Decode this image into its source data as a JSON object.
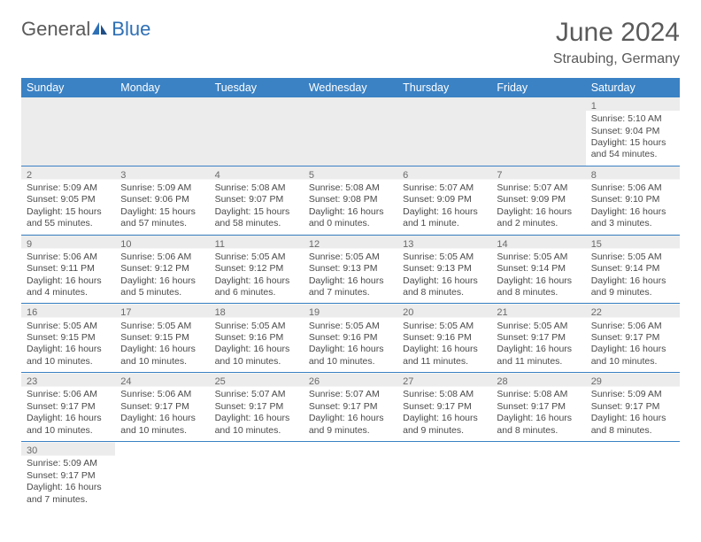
{
  "header": {
    "logo_general": "General",
    "logo_blue": "Blue",
    "title": "June 2024",
    "location": "Straubing, Germany"
  },
  "calendar": {
    "header_bg": "#3b82c4",
    "header_text_color": "#ffffff",
    "dayname_row_bg": "#ececec",
    "row_border_color": "#3b82c4",
    "text_color": "#4a4a4a",
    "daynames": [
      "Sunday",
      "Monday",
      "Tuesday",
      "Wednesday",
      "Thursday",
      "Friday",
      "Saturday"
    ],
    "weeks": [
      [
        null,
        null,
        null,
        null,
        null,
        null,
        {
          "n": "1",
          "sr": "Sunrise: 5:10 AM",
          "ss": "Sunset: 9:04 PM",
          "d1": "Daylight: 15 hours",
          "d2": "and 54 minutes."
        }
      ],
      [
        {
          "n": "2",
          "sr": "Sunrise: 5:09 AM",
          "ss": "Sunset: 9:05 PM",
          "d1": "Daylight: 15 hours",
          "d2": "and 55 minutes."
        },
        {
          "n": "3",
          "sr": "Sunrise: 5:09 AM",
          "ss": "Sunset: 9:06 PM",
          "d1": "Daylight: 15 hours",
          "d2": "and 57 minutes."
        },
        {
          "n": "4",
          "sr": "Sunrise: 5:08 AM",
          "ss": "Sunset: 9:07 PM",
          "d1": "Daylight: 15 hours",
          "d2": "and 58 minutes."
        },
        {
          "n": "5",
          "sr": "Sunrise: 5:08 AM",
          "ss": "Sunset: 9:08 PM",
          "d1": "Daylight: 16 hours",
          "d2": "and 0 minutes."
        },
        {
          "n": "6",
          "sr": "Sunrise: 5:07 AM",
          "ss": "Sunset: 9:09 PM",
          "d1": "Daylight: 16 hours",
          "d2": "and 1 minute."
        },
        {
          "n": "7",
          "sr": "Sunrise: 5:07 AM",
          "ss": "Sunset: 9:09 PM",
          "d1": "Daylight: 16 hours",
          "d2": "and 2 minutes."
        },
        {
          "n": "8",
          "sr": "Sunrise: 5:06 AM",
          "ss": "Sunset: 9:10 PM",
          "d1": "Daylight: 16 hours",
          "d2": "and 3 minutes."
        }
      ],
      [
        {
          "n": "9",
          "sr": "Sunrise: 5:06 AM",
          "ss": "Sunset: 9:11 PM",
          "d1": "Daylight: 16 hours",
          "d2": "and 4 minutes."
        },
        {
          "n": "10",
          "sr": "Sunrise: 5:06 AM",
          "ss": "Sunset: 9:12 PM",
          "d1": "Daylight: 16 hours",
          "d2": "and 5 minutes."
        },
        {
          "n": "11",
          "sr": "Sunrise: 5:05 AM",
          "ss": "Sunset: 9:12 PM",
          "d1": "Daylight: 16 hours",
          "d2": "and 6 minutes."
        },
        {
          "n": "12",
          "sr": "Sunrise: 5:05 AM",
          "ss": "Sunset: 9:13 PM",
          "d1": "Daylight: 16 hours",
          "d2": "and 7 minutes."
        },
        {
          "n": "13",
          "sr": "Sunrise: 5:05 AM",
          "ss": "Sunset: 9:13 PM",
          "d1": "Daylight: 16 hours",
          "d2": "and 8 minutes."
        },
        {
          "n": "14",
          "sr": "Sunrise: 5:05 AM",
          "ss": "Sunset: 9:14 PM",
          "d1": "Daylight: 16 hours",
          "d2": "and 8 minutes."
        },
        {
          "n": "15",
          "sr": "Sunrise: 5:05 AM",
          "ss": "Sunset: 9:14 PM",
          "d1": "Daylight: 16 hours",
          "d2": "and 9 minutes."
        }
      ],
      [
        {
          "n": "16",
          "sr": "Sunrise: 5:05 AM",
          "ss": "Sunset: 9:15 PM",
          "d1": "Daylight: 16 hours",
          "d2": "and 10 minutes."
        },
        {
          "n": "17",
          "sr": "Sunrise: 5:05 AM",
          "ss": "Sunset: 9:15 PM",
          "d1": "Daylight: 16 hours",
          "d2": "and 10 minutes."
        },
        {
          "n": "18",
          "sr": "Sunrise: 5:05 AM",
          "ss": "Sunset: 9:16 PM",
          "d1": "Daylight: 16 hours",
          "d2": "and 10 minutes."
        },
        {
          "n": "19",
          "sr": "Sunrise: 5:05 AM",
          "ss": "Sunset: 9:16 PM",
          "d1": "Daylight: 16 hours",
          "d2": "and 10 minutes."
        },
        {
          "n": "20",
          "sr": "Sunrise: 5:05 AM",
          "ss": "Sunset: 9:16 PM",
          "d1": "Daylight: 16 hours",
          "d2": "and 11 minutes."
        },
        {
          "n": "21",
          "sr": "Sunrise: 5:05 AM",
          "ss": "Sunset: 9:17 PM",
          "d1": "Daylight: 16 hours",
          "d2": "and 11 minutes."
        },
        {
          "n": "22",
          "sr": "Sunrise: 5:06 AM",
          "ss": "Sunset: 9:17 PM",
          "d1": "Daylight: 16 hours",
          "d2": "and 10 minutes."
        }
      ],
      [
        {
          "n": "23",
          "sr": "Sunrise: 5:06 AM",
          "ss": "Sunset: 9:17 PM",
          "d1": "Daylight: 16 hours",
          "d2": "and 10 minutes."
        },
        {
          "n": "24",
          "sr": "Sunrise: 5:06 AM",
          "ss": "Sunset: 9:17 PM",
          "d1": "Daylight: 16 hours",
          "d2": "and 10 minutes."
        },
        {
          "n": "25",
          "sr": "Sunrise: 5:07 AM",
          "ss": "Sunset: 9:17 PM",
          "d1": "Daylight: 16 hours",
          "d2": "and 10 minutes."
        },
        {
          "n": "26",
          "sr": "Sunrise: 5:07 AM",
          "ss": "Sunset: 9:17 PM",
          "d1": "Daylight: 16 hours",
          "d2": "and 9 minutes."
        },
        {
          "n": "27",
          "sr": "Sunrise: 5:08 AM",
          "ss": "Sunset: 9:17 PM",
          "d1": "Daylight: 16 hours",
          "d2": "and 9 minutes."
        },
        {
          "n": "28",
          "sr": "Sunrise: 5:08 AM",
          "ss": "Sunset: 9:17 PM",
          "d1": "Daylight: 16 hours",
          "d2": "and 8 minutes."
        },
        {
          "n": "29",
          "sr": "Sunrise: 5:09 AM",
          "ss": "Sunset: 9:17 PM",
          "d1": "Daylight: 16 hours",
          "d2": "and 8 minutes."
        }
      ],
      [
        {
          "n": "30",
          "sr": "Sunrise: 5:09 AM",
          "ss": "Sunset: 9:17 PM",
          "d1": "Daylight: 16 hours",
          "d2": "and 7 minutes."
        },
        null,
        null,
        null,
        null,
        null,
        null
      ]
    ]
  }
}
